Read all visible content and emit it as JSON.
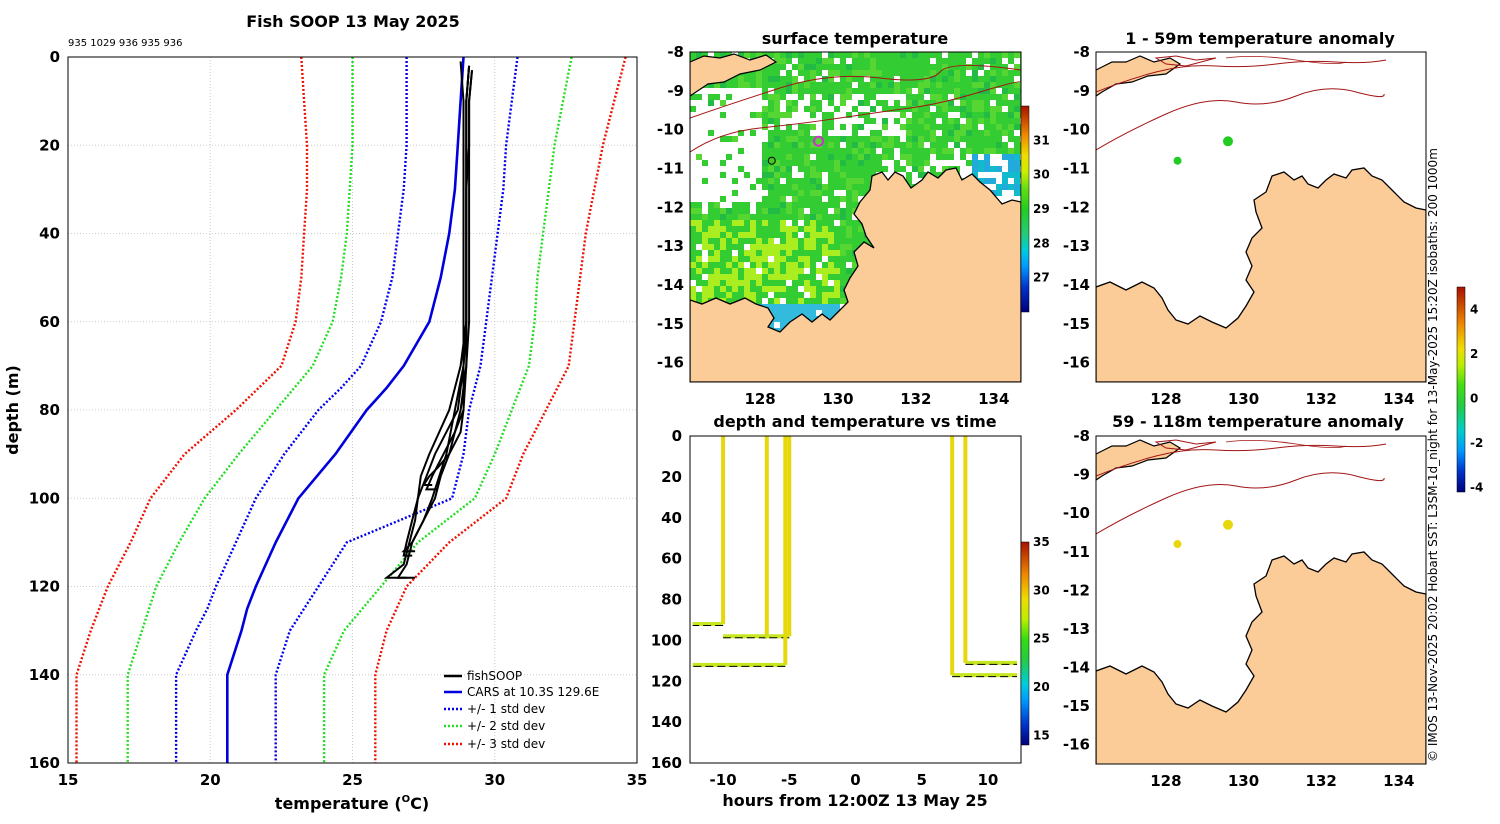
{
  "figure": {
    "ids_line": "935 1029 936 935 936",
    "copyright": "© IMOS 13-Nov-2025 20:02 Hobart SST: L3SM-1d_night for 13-May-2025 15:20Z isobaths: 200  1000m"
  },
  "colors": {
    "fishsoop": "#000000",
    "cars": "#0000dd",
    "std1": "#0000ee",
    "std2": "#22dd22",
    "std3": "#ee1100",
    "land": "#fbcb98",
    "isobath": "#a31515",
    "yellow_marker": "#e6d80a",
    "green_marker": "#22cc22"
  },
  "chart_data": [
    {
      "id": "profile",
      "type": "line",
      "title": "Fish SOOP 13 May 2025",
      "xlabel": "temperature (°C)",
      "xlabel_main": "temperature (",
      "xlabel_sup": "O",
      "xlabel_tail": "C)",
      "ylabel": "depth (m)",
      "xlim": [
        15,
        35
      ],
      "ylim": [
        0,
        160
      ],
      "y_reversed": true,
      "xticks": [
        15,
        20,
        25,
        30,
        35
      ],
      "yticks": [
        0,
        20,
        40,
        60,
        80,
        100,
        120,
        140,
        160
      ],
      "grid": true,
      "legend_position": "bottom-right",
      "legend": [
        "fishSOOP",
        "CARS at 10.3S 129.6E",
        "+/- 1 std dev",
        "+/- 2 std dev",
        "+/- 3 std dev"
      ],
      "cars_mean": {
        "depth": [
          0,
          10,
          20,
          30,
          40,
          50,
          60,
          70,
          75,
          80,
          90,
          100,
          110,
          120,
          125,
          130,
          140,
          160
        ],
        "temp": [
          28.9,
          28.8,
          28.7,
          28.6,
          28.4,
          28.1,
          27.7,
          26.8,
          26.2,
          25.5,
          24.4,
          23.1,
          22.3,
          21.6,
          21.3,
          21.1,
          20.6,
          20.6
        ]
      },
      "std1": {
        "lower": {
          "depth": [
            0,
            10,
            20,
            30,
            40,
            50,
            60,
            70,
            75,
            80,
            90,
            100,
            110,
            120,
            125,
            130,
            140,
            160
          ],
          "temp": [
            26.9,
            26.9,
            26.9,
            26.8,
            26.6,
            26.4,
            26.0,
            25.3,
            24.6,
            23.8,
            22.6,
            21.6,
            20.9,
            20.2,
            19.9,
            19.5,
            18.8,
            18.8
          ]
        },
        "upper": {
          "depth": [
            0,
            10,
            20,
            30,
            40,
            50,
            60,
            70,
            80,
            90,
            100,
            110,
            120,
            130,
            140,
            160
          ],
          "temp": [
            30.8,
            30.6,
            30.4,
            30.3,
            30.1,
            29.9,
            29.7,
            29.5,
            29.1,
            28.9,
            28.5,
            24.8,
            23.8,
            22.8,
            22.3,
            22.3
          ]
        }
      },
      "std2": {
        "lower": {
          "depth": [
            0,
            10,
            20,
            30,
            40,
            50,
            60,
            70,
            80,
            90,
            100,
            110,
            120,
            130,
            140,
            160
          ],
          "temp": [
            25.0,
            25.0,
            25.0,
            24.9,
            24.8,
            24.6,
            24.3,
            23.6,
            22.3,
            21.0,
            19.8,
            18.9,
            18.1,
            17.6,
            17.1,
            17.1
          ]
        },
        "upper": {
          "depth": [
            0,
            10,
            20,
            30,
            40,
            50,
            60,
            70,
            80,
            90,
            100,
            110,
            120,
            130,
            140,
            160
          ],
          "temp": [
            32.7,
            32.4,
            32.1,
            31.9,
            31.7,
            31.5,
            31.4,
            31.2,
            30.6,
            30.0,
            29.3,
            27.3,
            26.0,
            24.7,
            24.0,
            24.0
          ]
        }
      },
      "std3": {
        "lower": {
          "depth": [
            0,
            10,
            20,
            30,
            40,
            50,
            60,
            70,
            80,
            90,
            100,
            110,
            120,
            130,
            140,
            160
          ],
          "temp": [
            23.2,
            23.3,
            23.4,
            23.4,
            23.3,
            23.2,
            23.0,
            22.5,
            20.9,
            19.1,
            17.9,
            17.2,
            16.4,
            15.8,
            15.3,
            15.3
          ]
        },
        "upper": {
          "depth": [
            0,
            10,
            20,
            30,
            40,
            50,
            60,
            70,
            80,
            90,
            100,
            110,
            120,
            130,
            140,
            160
          ],
          "temp": [
            34.6,
            34.2,
            33.8,
            33.5,
            33.2,
            33.0,
            32.8,
            32.6,
            31.8,
            31.0,
            30.4,
            28.4,
            26.9,
            26.2,
            25.8,
            25.8
          ]
        }
      },
      "fishsoop": [
        {
          "depth": [
            1,
            10,
            20,
            30,
            40,
            50,
            60,
            70,
            80,
            85,
            90,
            93,
            95,
            97,
            97
          ],
          "temp": [
            28.8,
            28.9,
            28.9,
            28.9,
            28.9,
            28.9,
            28.9,
            28.9,
            28.9,
            28.8,
            28.4,
            28.0,
            27.7,
            27.5,
            27.8
          ]
        },
        {
          "depth": [
            2,
            10,
            20,
            30,
            40,
            50,
            60,
            70,
            80,
            85,
            90,
            95,
            98,
            98
          ],
          "temp": [
            29.1,
            29.0,
            29.0,
            29.0,
            29.0,
            29.0,
            29.0,
            29.0,
            28.9,
            28.6,
            28.2,
            27.8,
            27.6,
            28.0
          ]
        },
        {
          "depth": [
            3,
            10,
            20,
            30,
            40,
            50,
            60,
            70,
            80,
            90,
            95,
            100,
            105,
            110,
            112,
            112
          ],
          "temp": [
            29.2,
            29.1,
            29.1,
            29.1,
            29.1,
            29.1,
            29.1,
            29.0,
            28.8,
            28.4,
            28.1,
            27.9,
            27.5,
            27.1,
            26.8,
            27.2
          ]
        },
        {
          "depth": [
            3,
            10,
            20,
            30,
            40,
            50,
            60,
            70,
            80,
            90,
            95,
            100,
            105,
            110,
            113,
            113
          ],
          "temp": [
            29.2,
            29.1,
            29.1,
            29.0,
            29.0,
            29.0,
            29.0,
            28.9,
            28.7,
            27.9,
            27.6,
            27.3,
            27.1,
            26.9,
            26.8,
            27.1
          ]
        },
        {
          "depth": [
            2,
            10,
            20,
            30,
            40,
            50,
            60,
            70,
            80,
            90,
            100,
            105,
            110,
            115,
            118,
            118
          ],
          "temp": [
            29.1,
            29.0,
            29.0,
            29.0,
            29.0,
            29.0,
            29.0,
            28.9,
            28.6,
            28.3,
            27.8,
            27.5,
            27.1,
            26.9,
            26.6,
            27.2
          ]
        },
        {
          "depth": [
            2,
            10,
            20,
            30,
            40,
            50,
            60,
            70,
            80,
            90,
            95,
            100,
            105,
            110,
            115,
            118,
            118
          ],
          "temp": [
            29.1,
            29.0,
            29.0,
            29.0,
            29.0,
            29.0,
            29.0,
            28.8,
            28.4,
            27.7,
            27.4,
            27.3,
            27.2,
            27.0,
            26.8,
            26.2,
            26.9
          ]
        }
      ]
    },
    {
      "id": "sst",
      "type": "heatmap",
      "title": "surface temperature",
      "xlim": [
        126.2,
        134.7
      ],
      "ylim": [
        -16.5,
        -8
      ],
      "xticks": [
        128,
        130,
        132,
        134
      ],
      "yticks": [
        -8,
        -9,
        -10,
        -11,
        -12,
        -13,
        -14,
        -15,
        -16
      ],
      "colorbar": {
        "min": 26,
        "max": 32,
        "ticks": [
          27,
          28,
          29,
          30,
          31
        ]
      },
      "markers": [
        {
          "lon": 129.5,
          "lat": -10.3,
          "style": "magenta-ring"
        },
        {
          "lon": 128.3,
          "lat": -10.8,
          "style": "green-ring"
        }
      ]
    },
    {
      "id": "time",
      "type": "line",
      "title": "depth and temperature vs time",
      "xlabel": "hours from 12:00Z 13 May 25",
      "xlim": [
        -12.5,
        12.5
      ],
      "ylim": [
        0,
        160
      ],
      "y_reversed": true,
      "xticks": [
        -10,
        -5,
        0,
        5,
        10
      ],
      "yticks": [
        0,
        20,
        40,
        60,
        80,
        100,
        120,
        140,
        160
      ],
      "colorbar": {
        "min": 14,
        "max": 35,
        "ticks": [
          15,
          20,
          25,
          30,
          35
        ]
      },
      "casts": [
        {
          "t_down": -10.0,
          "t_up": -12.3,
          "max_depth": 92
        },
        {
          "t_down": -6.7,
          "t_up": -10.0,
          "max_depth": 98
        },
        {
          "t_down": -5.0,
          "t_up": -7.0,
          "max_depth": 98
        },
        {
          "t_down": -5.3,
          "t_up": -12.3,
          "max_depth": 112
        },
        {
          "t_down": 7.3,
          "t_up": 12.2,
          "max_depth": 117
        },
        {
          "t_down": 8.3,
          "t_up": 12.2,
          "max_depth": 111
        }
      ]
    },
    {
      "id": "anom1",
      "type": "heatmap",
      "title": "1 - 59m temperature anomaly",
      "xlim": [
        126.2,
        134.7
      ],
      "ylim": [
        -16.5,
        -8
      ],
      "xticks": [
        128,
        130,
        132,
        134
      ],
      "yticks": [
        -8,
        -9,
        -10,
        -11,
        -12,
        -13,
        -14,
        -15,
        -16
      ],
      "points": [
        {
          "lon": 129.6,
          "lat": -10.3,
          "anomaly": 0.2
        },
        {
          "lon": 128.3,
          "lat": -10.8,
          "anomaly": 0.1
        }
      ]
    },
    {
      "id": "anom2",
      "type": "heatmap",
      "title": "59 - 118m temperature anomaly",
      "xlim": [
        126.2,
        134.7
      ],
      "ylim": [
        -16.5,
        -8
      ],
      "xticks": [
        128,
        130,
        132,
        134
      ],
      "yticks": [
        -8,
        -9,
        -10,
        -11,
        -12,
        -13,
        -14,
        -15,
        -16
      ],
      "colorbar": {
        "min": -4.2,
        "max": 5.0,
        "ticks": [
          4,
          2,
          0,
          -2,
          -4
        ],
        "tick_labels": [
          "4",
          "2",
          "0",
          "-2",
          "-4"
        ]
      },
      "points": [
        {
          "lon": 129.6,
          "lat": -10.3,
          "anomaly": 2.3
        },
        {
          "lon": 128.3,
          "lat": -10.8,
          "anomaly": 2.1
        }
      ]
    }
  ]
}
